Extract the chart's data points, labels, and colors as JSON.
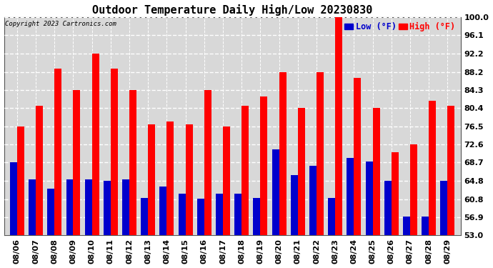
{
  "title": "Outdoor Temperature Daily High/Low 20230830",
  "copyright": "Copyright 2023 Cartronics.com",
  "dates": [
    "08/06",
    "08/07",
    "08/08",
    "08/09",
    "08/10",
    "08/11",
    "08/12",
    "08/13",
    "08/14",
    "08/15",
    "08/16",
    "08/17",
    "08/18",
    "08/19",
    "08/20",
    "08/21",
    "08/22",
    "08/23",
    "08/24",
    "08/25",
    "08/26",
    "08/27",
    "08/28",
    "08/29"
  ],
  "highs": [
    76.5,
    81.0,
    89.0,
    84.3,
    92.2,
    89.0,
    84.3,
    77.0,
    77.5,
    77.0,
    84.3,
    76.5,
    81.0,
    83.0,
    88.2,
    80.4,
    88.2,
    100.0,
    87.0,
    80.4,
    71.0,
    72.6,
    82.0,
    81.0
  ],
  "lows": [
    68.7,
    65.0,
    63.0,
    65.0,
    65.0,
    64.8,
    65.0,
    61.0,
    63.5,
    62.0,
    60.9,
    62.0,
    62.0,
    61.0,
    71.5,
    66.0,
    68.0,
    61.0,
    69.7,
    69.0,
    64.8,
    57.0,
    57.0,
    64.8
  ],
  "high_color": "#ff0000",
  "low_color": "#0000cc",
  "ylim_min": 53.0,
  "ylim_max": 100.0,
  "yticks": [
    53.0,
    56.9,
    60.8,
    64.8,
    68.7,
    72.6,
    76.5,
    80.4,
    84.3,
    88.2,
    92.2,
    96.1,
    100.0
  ],
  "ytick_labels": [
    "53.0",
    "56.9",
    "60.8",
    "64.8",
    "68.7",
    "72.6",
    "76.5",
    "80.4",
    "84.3",
    "88.2",
    "92.2",
    "96.1",
    "100.0"
  ],
  "background_color": "#ffffff",
  "plot_bg_color": "#d8d8d8",
  "grid_color": "#ffffff",
  "title_fontsize": 11,
  "tick_fontsize": 8,
  "bar_width": 0.38
}
